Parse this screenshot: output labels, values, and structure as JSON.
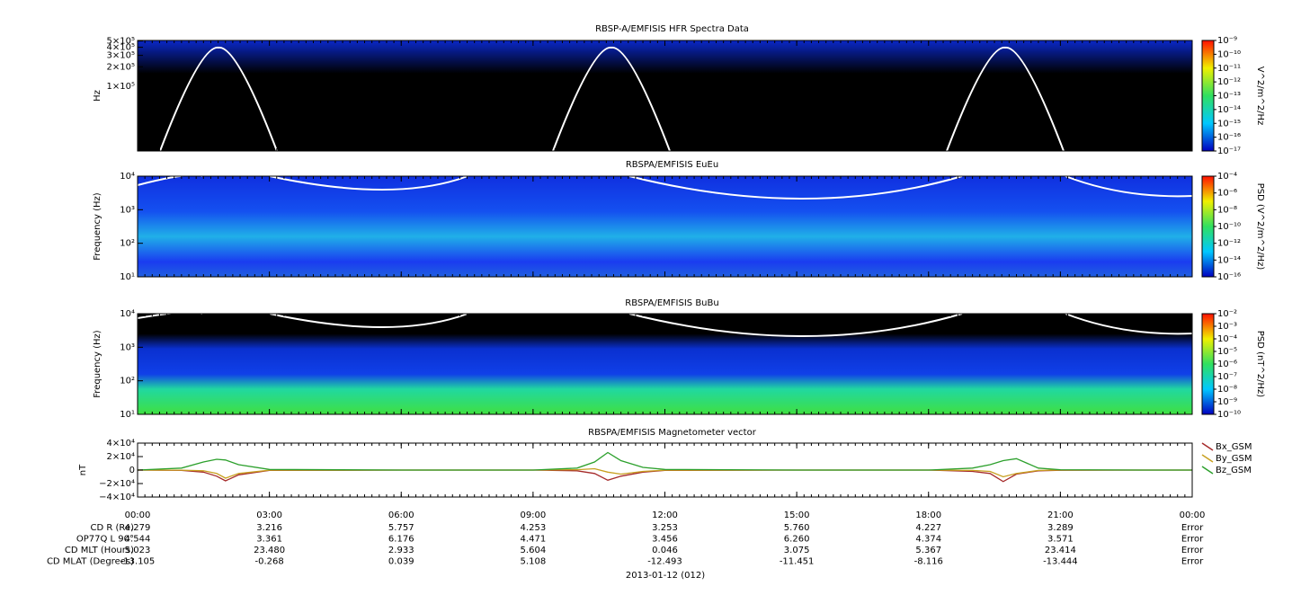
{
  "chart_data": [
    {
      "type": "spectrogram",
      "title": "RBSP-A/EMFISIS  HFR Spectra Data",
      "ylabel": "Hz",
      "log": true,
      "xlim": [
        0,
        24
      ],
      "ylim": [
        10000,
        510000
      ],
      "yticks": [
        {
          "value": 500000,
          "label": "5×10⁵"
        },
        {
          "value": 400000,
          "label": "4×10⁵"
        },
        {
          "value": 300000,
          "label": "3×10⁵"
        },
        {
          "value": 200000,
          "label": "2×10⁵"
        },
        {
          "value": 100000,
          "label": "1×10⁵"
        }
      ],
      "zlabel": "V^2/m^2/Hz",
      "zlog": true,
      "zlim": [
        1e-17,
        1e-09
      ],
      "zticks": [
        {
          "value": 1e-09,
          "label": "10⁻⁹"
        },
        {
          "value": 1e-10,
          "label": "10⁻¹⁰"
        },
        {
          "value": 1e-11,
          "label": "10⁻¹¹"
        },
        {
          "value": 1e-12,
          "label": "10⁻¹²"
        },
        {
          "value": 1e-13,
          "label": "10⁻¹³"
        },
        {
          "value": 1e-14,
          "label": "10⁻¹⁴"
        },
        {
          "value": 1e-15,
          "label": "10⁻¹⁵"
        },
        {
          "value": 1e-16,
          "label": "10⁻¹⁶"
        },
        {
          "value": 1e-17,
          "label": "10⁻¹⁷"
        }
      ]
    },
    {
      "type": "spectrogram",
      "title": "RBSPA/EMFISIS  EuEu",
      "ylabel": "Frequency (Hz)",
      "log": true,
      "xlim": [
        0,
        24
      ],
      "ylim": [
        10,
        10000
      ],
      "yticks": [
        {
          "value": 10000,
          "label": "10⁴"
        },
        {
          "value": 1000,
          "label": "10³"
        },
        {
          "value": 100,
          "label": "10²"
        },
        {
          "value": 10,
          "label": "10¹"
        }
      ],
      "zlabel": "PSD (V^2/m^2/Hz)",
      "zlog": true,
      "zlim": [
        1e-16,
        0.0001
      ],
      "zticks": [
        {
          "value": 0.0001,
          "label": "10⁻⁴"
        },
        {
          "value": 1e-06,
          "label": "10⁻⁶"
        },
        {
          "value": 1e-08,
          "label": "10⁻⁸"
        },
        {
          "value": 1e-10,
          "label": "10⁻¹⁰"
        },
        {
          "value": 1e-12,
          "label": "10⁻¹²"
        },
        {
          "value": 1e-14,
          "label": "10⁻¹⁴"
        },
        {
          "value": 1e-16,
          "label": "10⁻¹⁶"
        }
      ]
    },
    {
      "type": "spectrogram",
      "title": "RBSPA/EMFISIS  BuBu",
      "ylabel": "Frequency (Hz)",
      "log": true,
      "xlim": [
        0,
        24
      ],
      "ylim": [
        10,
        10000
      ],
      "yticks": [
        {
          "value": 10000,
          "label": "10⁴"
        },
        {
          "value": 1000,
          "label": "10³"
        },
        {
          "value": 100,
          "label": "10²"
        },
        {
          "value": 10,
          "label": "10¹"
        }
      ],
      "zlabel": "PSD (nT^2/Hz)",
      "zlog": true,
      "zlim": [
        1e-10,
        0.01
      ],
      "zticks": [
        {
          "value": 0.01,
          "label": "10⁻²"
        },
        {
          "value": 0.001,
          "label": "10⁻³"
        },
        {
          "value": 0.0001,
          "label": "10⁻⁴"
        },
        {
          "value": 1e-05,
          "label": "10⁻⁵"
        },
        {
          "value": 1e-06,
          "label": "10⁻⁶"
        },
        {
          "value": 1e-07,
          "label": "10⁻⁷"
        },
        {
          "value": 1e-08,
          "label": "10⁻⁸"
        },
        {
          "value": 1e-09,
          "label": "10⁻⁹"
        },
        {
          "value": 1e-10,
          "label": "10⁻¹⁰"
        }
      ]
    },
    {
      "type": "line",
      "title": "RBSPA/EMFISIS  Magnetometer vector",
      "ylabel": "nT",
      "xlim": [
        0,
        24
      ],
      "ylim": [
        -40000,
        40000
      ],
      "xticks": [
        {
          "value": 0,
          "label": "00:00"
        },
        {
          "value": 3,
          "label": "03:00"
        },
        {
          "value": 6,
          "label": "06:00"
        },
        {
          "value": 9,
          "label": "09:00"
        },
        {
          "value": 12,
          "label": "12:00"
        },
        {
          "value": 15,
          "label": "15:00"
        },
        {
          "value": 18,
          "label": "18:00"
        },
        {
          "value": 21,
          "label": "21:00"
        },
        {
          "value": 24,
          "label": "00:00"
        }
      ],
      "yticks": [
        {
          "value": 40000,
          "label": "4×10⁴"
        },
        {
          "value": 20000,
          "label": "2×10⁴"
        },
        0,
        {
          "value": -20000,
          "label": "−2×10⁴"
        },
        {
          "value": -40000,
          "label": "−4×10⁴"
        }
      ],
      "x": [
        0,
        1,
        1.5,
        1.8,
        2.0,
        2.3,
        3,
        6,
        9,
        10,
        10.4,
        10.7,
        11,
        11.5,
        12,
        15,
        18,
        19,
        19.4,
        19.7,
        20,
        20.5,
        21,
        23,
        24
      ],
      "series": [
        {
          "name": "Bx_GSM",
          "color": "#a52a2a",
          "values": [
            0,
            -500,
            -3000,
            -9000,
            -16000,
            -7000,
            -500,
            0,
            0,
            -1000,
            -5000,
            -15000,
            -9000,
            -3000,
            -500,
            0,
            0,
            -2000,
            -5000,
            -17000,
            -6000,
            -1000,
            -300,
            0,
            0
          ]
        },
        {
          "name": "By_GSM",
          "color": "#c8a020",
          "values": [
            0,
            -200,
            -1000,
            -5000,
            -12000,
            -5000,
            -200,
            0,
            0,
            500,
            2000,
            -3000,
            -6000,
            -2000,
            -200,
            0,
            0,
            -500,
            -2000,
            -10000,
            -5000,
            -500,
            0,
            0,
            0
          ]
        },
        {
          "name": "Bz_GSM",
          "color": "#2ca02c",
          "values": [
            0,
            3000,
            12000,
            16000,
            15000,
            8000,
            1000,
            0,
            0,
            3000,
            12000,
            26000,
            14000,
            4000,
            1000,
            0,
            0,
            3000,
            8000,
            14000,
            17000,
            3000,
            500,
            0,
            0
          ]
        }
      ]
    }
  ],
  "ephemeris": {
    "date": "2013-01-12 (012)",
    "rows": [
      {
        "label": "CD R (Re)",
        "values": [
          "4.279",
          "3.216",
          "5.757",
          "4.253",
          "3.253",
          "5.760",
          "4.227",
          "3.289",
          "Error"
        ]
      },
      {
        "label": "OP77Q L 90°",
        "values": [
          "4.544",
          "3.361",
          "6.176",
          "4.471",
          "3.456",
          "6.260",
          "4.374",
          "3.571",
          "Error"
        ]
      },
      {
        "label": "CD MLT (Hours)",
        "values": [
          "5.023",
          "23.480",
          "2.933",
          "5.604",
          "0.046",
          "3.075",
          "5.367",
          "23.414",
          "Error"
        ]
      },
      {
        "label": "CD MLAT (Degrees)",
        "values": [
          "-13.105",
          "-0.268",
          "0.039",
          "5.108",
          "-12.493",
          "-11.451",
          "-8.116",
          "-13.444",
          "Error"
        ]
      }
    ]
  }
}
